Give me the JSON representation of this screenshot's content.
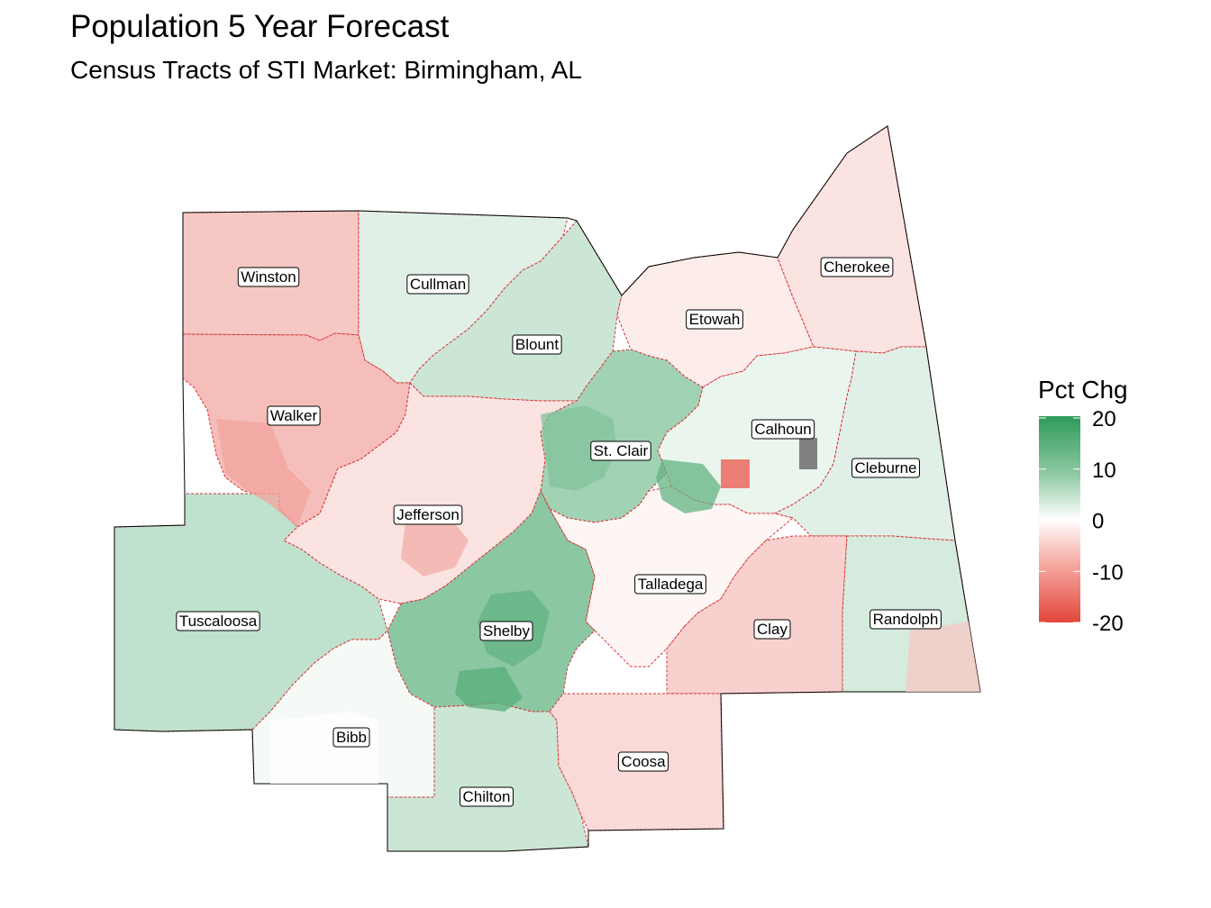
{
  "title": "Population 5 Year Forecast",
  "subtitle": "Census Tracts of STI Market: Birmingham, AL",
  "colors": {
    "positive": "#2e9a58",
    "neutral": "#ffffff",
    "negative": "#e2463a",
    "county_border": "#d93030",
    "outline": "#000000",
    "missing": "#808080"
  },
  "legend": {
    "title": "Pct Chg",
    "ticks": [
      "20",
      "10",
      "0",
      "-10",
      "-20"
    ]
  },
  "counties": [
    {
      "name": "Winston",
      "value": -6
    },
    {
      "name": "Cullman",
      "value": 3
    },
    {
      "name": "Blount",
      "value": 5
    },
    {
      "name": "Etowah",
      "value": -2
    },
    {
      "name": "Cherokee",
      "value": -3
    },
    {
      "name": "Walker",
      "value": -7
    },
    {
      "name": "St. Clair",
      "value": 9
    },
    {
      "name": "Calhoun",
      "value": 2
    },
    {
      "name": "Cleburne",
      "value": 3
    },
    {
      "name": "Jefferson",
      "value": -3
    },
    {
      "name": "Talladega",
      "value": -1
    },
    {
      "name": "Tuscaloosa",
      "value": 6
    },
    {
      "name": "Shelby",
      "value": 11
    },
    {
      "name": "Clay",
      "value": -5
    },
    {
      "name": "Randolph",
      "value": 4
    },
    {
      "name": "Bibb",
      "value": 1
    },
    {
      "name": "Chilton",
      "value": 5
    },
    {
      "name": "Coosa",
      "value": -4
    }
  ]
}
